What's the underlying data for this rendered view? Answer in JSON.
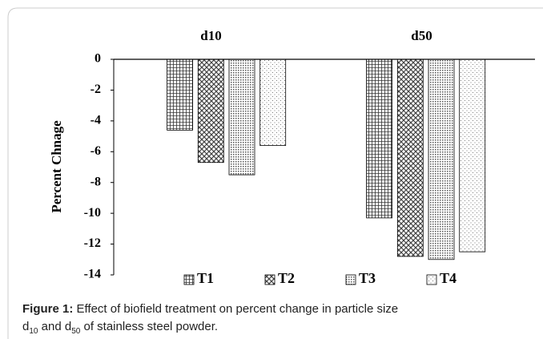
{
  "chart_data": {
    "type": "bar",
    "ylabel": "Percent Chnage",
    "categories": [
      "d10",
      "d50"
    ],
    "series": [
      {
        "name": "T1",
        "color": "#333333",
        "values": [
          -4.6,
          -10.3
        ]
      },
      {
        "name": "T2",
        "color": "#444444",
        "values": [
          -6.7,
          -12.8
        ]
      },
      {
        "name": "T3",
        "color": "#555555",
        "values": [
          -7.5,
          -13.0
        ]
      },
      {
        "name": "T4",
        "color": "#777777",
        "values": [
          -5.6,
          -12.5
        ]
      }
    ],
    "ylim": [
      -14,
      0
    ],
    "yticks": [
      0,
      -2,
      -4,
      -6,
      -8,
      -10,
      -12,
      -14
    ],
    "legend": "bottom"
  },
  "caption": {
    "label": "Figure 1:",
    "text": [
      " Effect of biofield treatment on percent change in particle size",
      "d",
      "10",
      " and d",
      "50",
      " of stainless steel powder."
    ]
  }
}
